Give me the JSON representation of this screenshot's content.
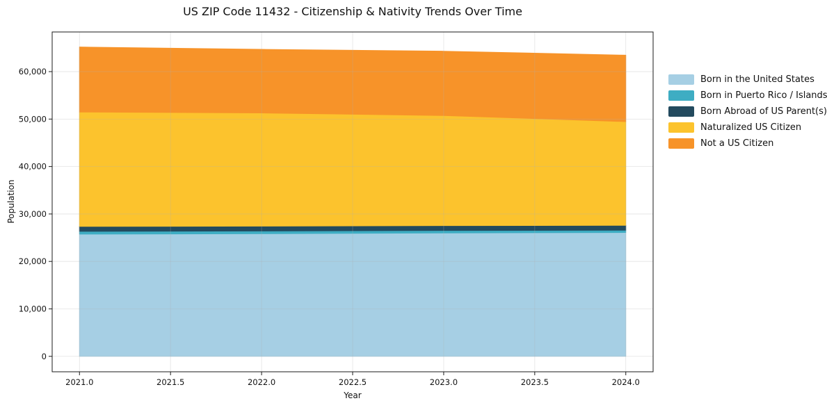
{
  "chart_data": {
    "type": "area",
    "stacked": true,
    "title": "US ZIP Code 11432 - Citizenship & Nativity Trends Over Time",
    "xlabel": "Year",
    "ylabel": "Population",
    "x": [
      2021,
      2022,
      2023,
      2024
    ],
    "series": [
      {
        "name": "Born in the United States",
        "color": "#a6cfe4",
        "values": [
          25750,
          25850,
          26000,
          26100
        ]
      },
      {
        "name": "Born in Puerto Rico / Islands",
        "color": "#3eadc3",
        "values": [
          600,
          560,
          520,
          480
        ]
      },
      {
        "name": "Born Abroad of US Parent(s)",
        "color": "#234a5e",
        "values": [
          1030,
          1030,
          1030,
          1030
        ]
      },
      {
        "name": "Naturalized US Citizen",
        "color": "#fcc32d",
        "values": [
          24100,
          23850,
          23200,
          21850
        ]
      },
      {
        "name": "Not a US Citizen",
        "color": "#f79329",
        "values": [
          13700,
          13400,
          13550,
          14000
        ]
      }
    ],
    "xlim": [
      2020.85,
      2024.15
    ],
    "ylim": [
      -3255,
      68355
    ],
    "xticks": [
      2021.0,
      2021.5,
      2022.0,
      2022.5,
      2023.0,
      2023.5,
      2024.0
    ],
    "xtick_labels": [
      "2021.0",
      "2021.5",
      "2022.0",
      "2022.5",
      "2023.0",
      "2023.5",
      "2024.0"
    ],
    "yticks": [
      0,
      10000,
      20000,
      30000,
      40000,
      50000,
      60000
    ],
    "ytick_labels": [
      "0",
      "10,000",
      "20,000",
      "30,000",
      "40,000",
      "50,000",
      "60,000"
    ],
    "grid": true,
    "grid_color": "#b0b0b0",
    "spine_color": "#1a1a1a",
    "legend_position": "right"
  }
}
